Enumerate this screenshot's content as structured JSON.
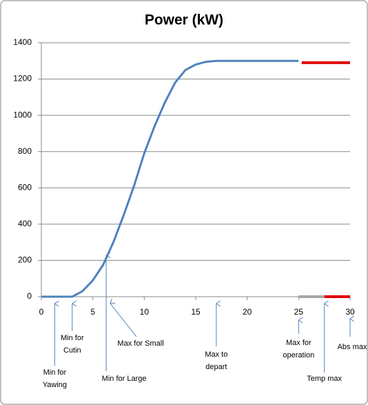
{
  "chart_data": {
    "type": "line",
    "title": "Power (kW)",
    "x": [
      0,
      1,
      2,
      3,
      4,
      5,
      6,
      7,
      8,
      9,
      10,
      11,
      12,
      13,
      14,
      15,
      16,
      17,
      18,
      19,
      20,
      21,
      22,
      23,
      24,
      25
    ],
    "series": [
      {
        "color": "#4f81bd",
        "values": [
          0,
          0,
          0,
          0,
          30,
          90,
          175,
          300,
          450,
          610,
          790,
          940,
          1070,
          1180,
          1250,
          1280,
          1295,
          1300,
          1300,
          1300,
          1300,
          1300,
          1300,
          1300,
          1300,
          1300
        ]
      },
      {
        "color": "#e00000",
        "x": [
          25.3,
          30
        ],
        "values": [
          1290,
          1290
        ]
      },
      {
        "color": "#a6a6a6",
        "x": [
          25,
          27.5
        ],
        "values": [
          0,
          0
        ]
      },
      {
        "color": "#e00000",
        "x": [
          27.5,
          30
        ],
        "values": [
          0,
          0
        ]
      }
    ],
    "xlim": [
      0,
      30
    ],
    "xticks": [
      0,
      5,
      10,
      15,
      20,
      25,
      30
    ],
    "ylim": [
      0,
      1400
    ],
    "yticks": [
      0,
      200,
      400,
      600,
      800,
      1000,
      1200,
      1400
    ],
    "grid": true,
    "annotations": [
      {
        "lines": [
          "Min for",
          "Yawing"
        ],
        "x": 1.3
      },
      {
        "lines": [
          "Min for",
          "Cutin"
        ],
        "x": 3
      },
      {
        "lines": [
          "Min for Large"
        ],
        "x": 6.3
      },
      {
        "lines": [
          "Max for Small"
        ],
        "x": 6.7
      },
      {
        "lines": [
          "Max  to",
          "depart"
        ],
        "x": 17
      },
      {
        "lines": [
          "Max for",
          "operation"
        ],
        "x": 25
      },
      {
        "lines": [
          "Temp max"
        ],
        "x": 27.5
      },
      {
        "lines": [
          "Abs max"
        ],
        "x": 30
      }
    ]
  }
}
